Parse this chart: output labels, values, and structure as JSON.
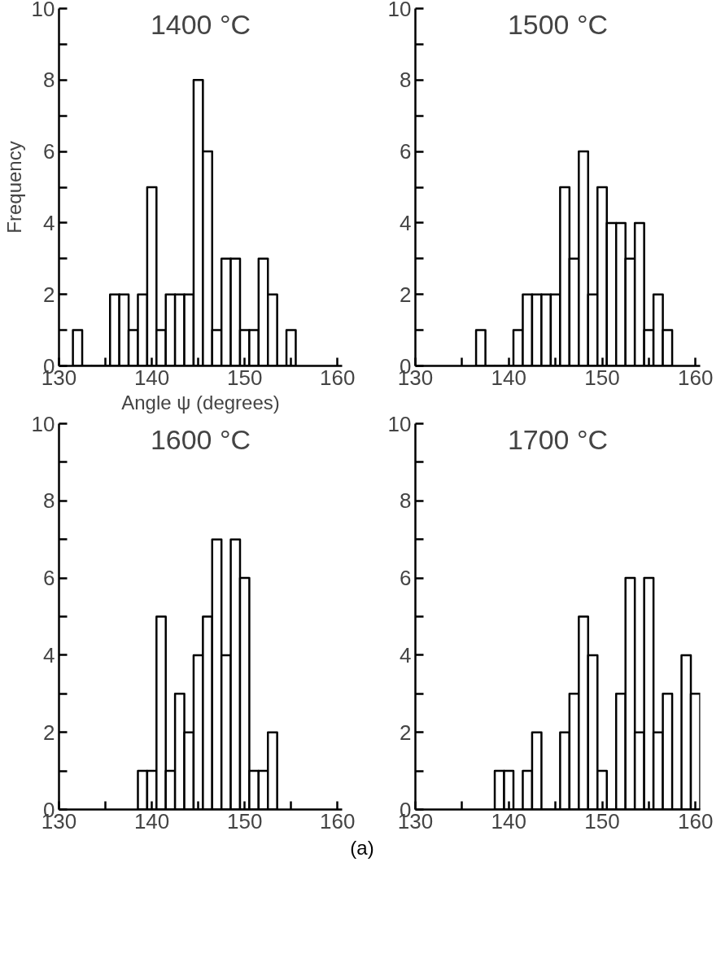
{
  "chart_data": [
    {
      "type": "histogram",
      "title": "1400 °C",
      "ylabel": "Frequency",
      "xlabel": "Angle ψ (degrees)",
      "bins": [
        131.5,
        132.5,
        133.5,
        134.5,
        135.5,
        136.5,
        137.5,
        138.5,
        139.5,
        140.5,
        141.5,
        142.5,
        143.5,
        144.5,
        145.5,
        146.5,
        147.5,
        148.5,
        149.5,
        150.5,
        151.5,
        152.5,
        153.5,
        154.5,
        155.5
      ],
      "values": [
        1,
        0,
        0,
        0,
        2,
        2,
        1,
        2,
        5,
        1,
        2,
        2,
        2,
        8,
        6,
        1,
        3,
        3,
        1,
        1,
        3,
        2,
        0,
        1
      ],
      "color": "#ffffff",
      "xlim": [
        130,
        160.5
      ],
      "ylim": [
        0,
        10
      ],
      "xticks": [
        130,
        {
          "value": 135,
          "label": null
        },
        140,
        {
          "value": 145,
          "label": null
        },
        150,
        {
          "value": 155,
          "label": null
        },
        160
      ],
      "yticks": [
        0,
        {
          "value": 1,
          "label": null
        },
        2,
        {
          "value": 3,
          "label": null
        },
        4,
        {
          "value": 5,
          "label": null
        },
        6,
        {
          "value": 7,
          "label": null
        },
        8,
        {
          "value": 9,
          "label": null
        },
        10
      ]
    },
    {
      "type": "histogram",
      "title": "1500 °C",
      "bins": [
        136.5,
        137.5,
        138.5,
        139.5,
        140.5,
        141.5,
        142.5,
        143.5,
        144.5,
        145.5,
        146.5,
        147.5,
        148.5,
        149.5,
        150.5,
        151.5,
        152.5,
        153.5,
        154.5,
        155.5,
        156.5,
        157.5
      ],
      "values": [
        1,
        0,
        0,
        0,
        1,
        2,
        2,
        2,
        2,
        5,
        3,
        6,
        2,
        5,
        4,
        4,
        3,
        4,
        1,
        2,
        1
      ],
      "color": "#ffffff",
      "xlim": [
        130,
        160.5
      ],
      "ylim": [
        0,
        10
      ],
      "xticks": [
        130,
        {
          "value": 135,
          "label": null
        },
        140,
        {
          "value": 145,
          "label": null
        },
        150,
        {
          "value": 155,
          "label": null
        },
        160
      ],
      "yticks": [
        0,
        {
          "value": 1,
          "label": null
        },
        2,
        {
          "value": 3,
          "label": null
        },
        4,
        {
          "value": 5,
          "label": null
        },
        6,
        {
          "value": 7,
          "label": null
        },
        8,
        {
          "value": 9,
          "label": null
        },
        10
      ]
    },
    {
      "type": "histogram",
      "title": "1600 °C",
      "bins": [
        138.5,
        139.5,
        140.5,
        141.5,
        142.5,
        143.5,
        144.5,
        145.5,
        146.5,
        147.5,
        148.5,
        149.5,
        150.5,
        151.5,
        152.5,
        153.5
      ],
      "values": [
        1,
        1,
        5,
        1,
        3,
        2,
        4,
        5,
        7,
        4,
        7,
        6,
        1,
        1,
        2
      ],
      "color": "#ffffff",
      "xlim": [
        130,
        160.5
      ],
      "ylim": [
        0,
        10
      ],
      "xticks": [
        130,
        {
          "value": 135,
          "label": null
        },
        140,
        {
          "value": 145,
          "label": null
        },
        150,
        {
          "value": 155,
          "label": null
        },
        160
      ],
      "yticks": [
        0,
        {
          "value": 1,
          "label": null
        },
        2,
        {
          "value": 3,
          "label": null
        },
        4,
        {
          "value": 5,
          "label": null
        },
        6,
        {
          "value": 7,
          "label": null
        },
        8,
        {
          "value": 9,
          "label": null
        },
        10
      ]
    },
    {
      "type": "histogram",
      "title": "1700 °C",
      "bins": [
        138.5,
        139.5,
        140.5,
        141.5,
        142.5,
        143.5,
        144.5,
        145.5,
        146.5,
        147.5,
        148.5,
        149.5,
        150.5,
        151.5,
        152.5,
        153.5,
        154.5,
        155.5,
        156.5,
        157.5,
        158.5,
        159.5,
        160.5
      ],
      "values": [
        1,
        1,
        0,
        1,
        2,
        0,
        0,
        2,
        3,
        5,
        4,
        1,
        0,
        3,
        6,
        2,
        6,
        2,
        3,
        0,
        4,
        3
      ],
      "color": "#ffffff",
      "xlim": [
        130,
        160.5
      ],
      "ylim": [
        0,
        10
      ],
      "xticks": [
        130,
        {
          "value": 135,
          "label": null
        },
        140,
        {
          "value": 145,
          "label": null
        },
        150,
        {
          "value": 155,
          "label": null
        },
        160
      ],
      "yticks": [
        0,
        {
          "value": 1,
          "label": null
        },
        2,
        {
          "value": 3,
          "label": null
        },
        4,
        {
          "value": 5,
          "label": null
        },
        6,
        {
          "value": 7,
          "label": null
        },
        8,
        {
          "value": 9,
          "label": null
        },
        10
      ],
      "annotations": [
        "(a)"
      ]
    }
  ]
}
